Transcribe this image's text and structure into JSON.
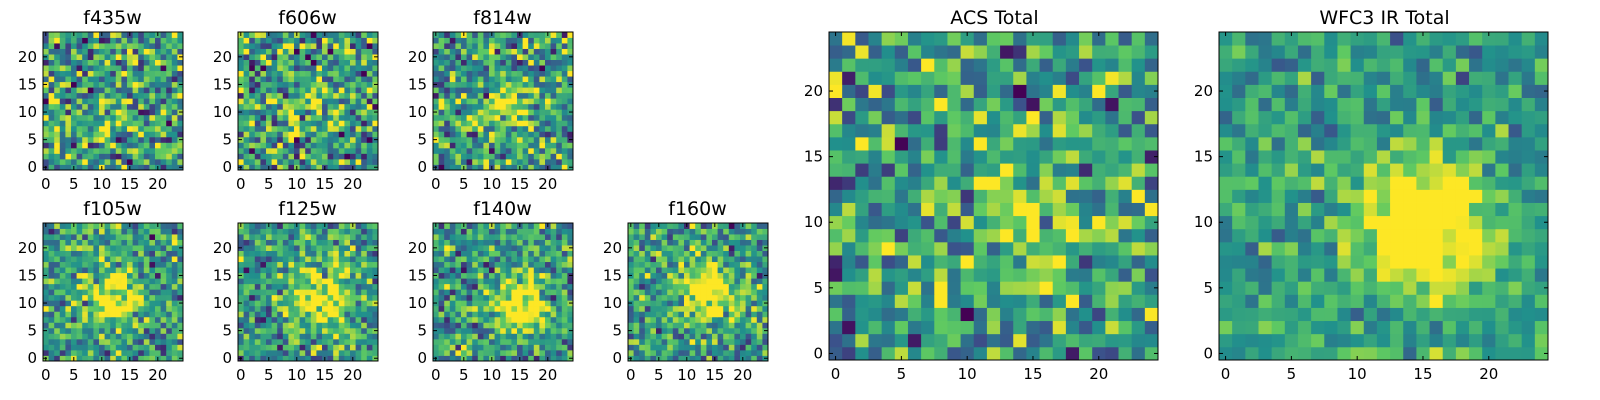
{
  "figure": {
    "colormap": "viridis",
    "colors": [
      "#440154",
      "#3b528b",
      "#21918c",
      "#5ec962",
      "#fde725"
    ],
    "background": "#ffffff"
  },
  "chart_data": [
    {
      "type": "heatmap",
      "title": "f435w",
      "grid_size": 25,
      "xlim": [
        -0.5,
        24.5
      ],
      "ylim": [
        -0.5,
        24.5
      ],
      "xticks": [
        0,
        5,
        10,
        15,
        20
      ],
      "yticks": [
        0,
        5,
        10,
        15,
        20
      ],
      "source": {
        "center": [
          13,
          11
        ],
        "sigma": 3.5,
        "amplitude": 0.15
      },
      "noise": {
        "seed": 11,
        "level": 1.0
      }
    },
    {
      "type": "heatmap",
      "title": "f606w",
      "grid_size": 25,
      "xlim": [
        -0.5,
        24.5
      ],
      "ylim": [
        -0.5,
        24.5
      ],
      "xticks": [
        0,
        5,
        10,
        15,
        20
      ],
      "yticks": [
        0,
        5,
        10,
        15,
        20
      ],
      "source": {
        "center": [
          13,
          11
        ],
        "sigma": 3.5,
        "amplitude": 0.25
      },
      "noise": {
        "seed": 23,
        "level": 1.0
      }
    },
    {
      "type": "heatmap",
      "title": "f814w",
      "grid_size": 25,
      "xlim": [
        -0.5,
        24.5
      ],
      "ylim": [
        -0.5,
        24.5
      ],
      "xticks": [
        0,
        5,
        10,
        15,
        20
      ],
      "yticks": [
        0,
        5,
        10,
        15,
        20
      ],
      "source": {
        "center": [
          13,
          11
        ],
        "sigma": 3.0,
        "amplitude": 0.5
      },
      "noise": {
        "seed": 37,
        "level": 0.9
      }
    },
    {
      "type": "heatmap",
      "title": "f105w",
      "grid_size": 25,
      "xlim": [
        -0.5,
        24.5
      ],
      "ylim": [
        -0.5,
        24.5
      ],
      "xticks": [
        0,
        5,
        10,
        15,
        20
      ],
      "yticks": [
        0,
        5,
        10,
        15,
        20
      ],
      "source": {
        "center": [
          12,
          11
        ],
        "sigma": 3.0,
        "amplitude": 0.8
      },
      "noise": {
        "seed": 41,
        "level": 0.75
      }
    },
    {
      "type": "heatmap",
      "title": "f125w",
      "grid_size": 25,
      "xlim": [
        -0.5,
        24.5
      ],
      "ylim": [
        -0.5,
        24.5
      ],
      "xticks": [
        0,
        5,
        10,
        15,
        20
      ],
      "yticks": [
        0,
        5,
        10,
        15,
        20
      ],
      "source": {
        "center": [
          14,
          11
        ],
        "sigma": 3.5,
        "amplitude": 0.7
      },
      "noise": {
        "seed": 53,
        "level": 0.75
      }
    },
    {
      "type": "heatmap",
      "title": "f140w",
      "grid_size": 25,
      "xlim": [
        -0.5,
        24.5
      ],
      "ylim": [
        -0.5,
        24.5
      ],
      "xticks": [
        0,
        5,
        10,
        15,
        20
      ],
      "yticks": [
        0,
        5,
        10,
        15,
        20
      ],
      "source": {
        "center": [
          15,
          10
        ],
        "sigma": 3.5,
        "amplitude": 0.75
      },
      "noise": {
        "seed": 67,
        "level": 0.75
      }
    },
    {
      "type": "heatmap",
      "title": "f160w",
      "grid_size": 25,
      "xlim": [
        -0.5,
        24.5
      ],
      "ylim": [
        -0.5,
        24.5
      ],
      "xticks": [
        0,
        5,
        10,
        15,
        20
      ],
      "yticks": [
        0,
        5,
        10,
        15,
        20
      ],
      "source": {
        "center": [
          14,
          12
        ],
        "sigma": 3.5,
        "amplitude": 0.75
      },
      "noise": {
        "seed": 79,
        "level": 0.75
      }
    },
    {
      "type": "heatmap",
      "title": "ACS Total",
      "grid_size": 25,
      "xlim": [
        -0.5,
        24.5
      ],
      "ylim": [
        -0.5,
        24.5
      ],
      "xticks": [
        0,
        5,
        10,
        15,
        20
      ],
      "yticks": [
        0,
        5,
        10,
        15,
        20
      ],
      "source": {
        "center": [
          15,
          10
        ],
        "sigma": 3.5,
        "amplitude": 0.45
      },
      "noise": {
        "seed": 91,
        "level": 0.85
      }
    },
    {
      "type": "heatmap",
      "title": "WFC3 IR Total",
      "grid_size": 25,
      "xlim": [
        -0.5,
        24.5
      ],
      "ylim": [
        -0.5,
        24.5
      ],
      "xticks": [
        0,
        5,
        10,
        15,
        20
      ],
      "yticks": [
        0,
        5,
        10,
        15,
        20
      ],
      "source": {
        "center": [
          15,
          10
        ],
        "sigma": 3.5,
        "amplitude": 1.0
      },
      "noise": {
        "seed": 103,
        "level": 0.5
      }
    }
  ]
}
